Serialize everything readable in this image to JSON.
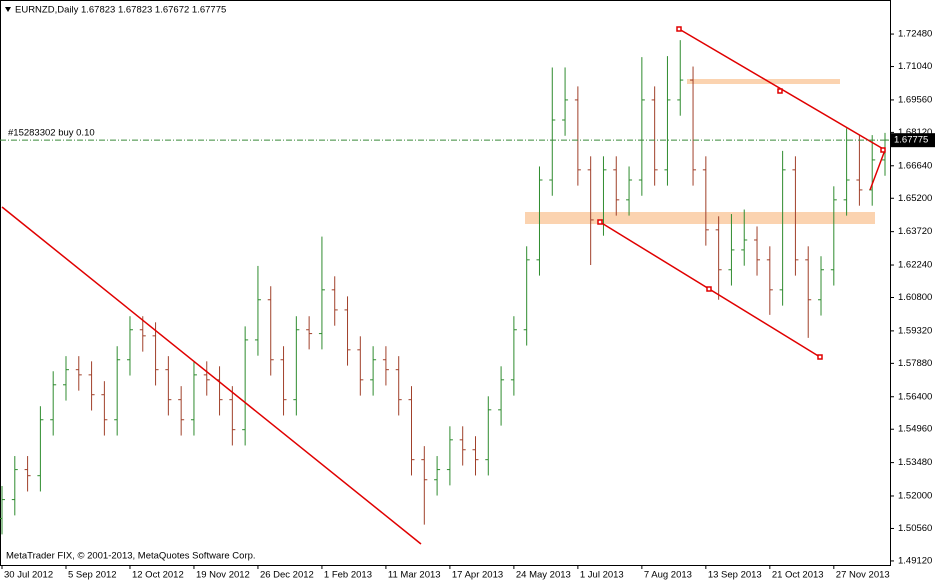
{
  "chart_data": {
    "type": "ohlc",
    "title": "EURNZD,Daily  1.67823 1.67823 1.67672 1.67775",
    "footer": "MetaTrader FIX, © 2001-2013, MetaQuotes Software Corp.",
    "order_label": "#15283302 buy 0.10",
    "current_price": {
      "value": 1.67775,
      "label": "1.67775"
    },
    "up_color": "#2e8b2e",
    "down_color": "#a0402a",
    "categories": [
      "30 Jul 2012",
      null,
      null,
      null,
      null,
      "5 Sep 2012",
      null,
      null,
      null,
      null,
      "12 Oct 2012",
      null,
      null,
      null,
      null,
      "19 Nov 2012",
      null,
      null,
      null,
      null,
      "26 Dec 2012",
      null,
      null,
      null,
      null,
      "1 Feb 2013",
      null,
      null,
      null,
      null,
      "11 Mar 2013",
      null,
      null,
      null,
      null,
      "17 Apr 2013",
      null,
      null,
      null,
      null,
      "24 May 2013",
      null,
      null,
      null,
      null,
      "1 Jul 2013",
      null,
      null,
      null,
      null,
      "7 Aug 2013",
      null,
      null,
      null,
      null,
      "13 Sep 2013",
      null,
      null,
      null,
      null,
      "21 Oct 2013",
      null,
      null,
      null,
      null,
      "27 Nov 2013",
      null,
      null,
      null,
      null
    ],
    "open": [
      1.51,
      1.5184,
      1.5317,
      1.529,
      1.5538,
      1.5693,
      1.576,
      1.5737,
      1.5649,
      1.5538,
      1.5804,
      1.5937,
      1.591,
      1.576,
      1.5627,
      1.5538,
      1.5737,
      1.5715,
      1.5627,
      1.5494,
      1.5892,
      1.607,
      1.5804,
      1.5627,
      1.5937,
      1.592,
      1.6114,
      1.6025,
      1.5848,
      1.5715,
      1.5804,
      1.576,
      1.5627,
      1.5361,
      1.5272,
      1.5317,
      1.5449,
      1.5405,
      1.5361,
      1.5582,
      1.5715,
      1.5937,
      1.6247,
      1.6601,
      1.6867,
      1.6956,
      1.6646,
      1.6424,
      1.6646,
      1.6513,
      1.6601,
      1.6956,
      1.6646,
      1.6956,
      1.7044,
      1.6646,
      1.638,
      1.6203,
      1.6291,
      1.6335,
      1.6247,
      1.6114,
      1.6646,
      1.6247,
      1.607,
      1.6203,
      1.6513,
      1.6601,
      1.6557,
      1.669
    ],
    "high": [
      1.5244,
      1.5377,
      1.5377,
      1.5598,
      1.5753,
      1.582,
      1.582,
      1.5797,
      1.5709,
      1.5864,
      1.5997,
      1.5997,
      1.597,
      1.582,
      1.5687,
      1.5797,
      1.5797,
      1.5775,
      1.5687,
      1.5952,
      1.622,
      1.613,
      1.5864,
      1.5997,
      1.5997,
      1.635,
      1.6174,
      1.6085,
      1.5908,
      1.5864,
      1.5864,
      1.582,
      1.5687,
      1.5421,
      1.5377,
      1.5509,
      1.5509,
      1.5465,
      1.5642,
      1.5775,
      1.5997,
      1.6307,
      1.6661,
      1.71,
      1.71,
      1.7016,
      1.6706,
      1.6706,
      1.6706,
      1.6661,
      1.7146,
      1.7016,
      1.715,
      1.7221,
      1.7104,
      1.6706,
      1.644,
      1.645,
      1.647,
      1.6395,
      1.6307,
      1.673,
      1.6706,
      1.6307,
      1.6263,
      1.6573,
      1.683,
      1.68,
      1.68,
      1.681
    ],
    "low": [
      1.503,
      1.5114,
      1.522,
      1.522,
      1.5468,
      1.5623,
      1.5667,
      1.5579,
      1.5468,
      1.5468,
      1.5734,
      1.584,
      1.569,
      1.5557,
      1.5468,
      1.5468,
      1.5645,
      1.5557,
      1.5424,
      1.5424,
      1.5822,
      1.5734,
      1.5557,
      1.5557,
      1.585,
      1.585,
      1.5955,
      1.5778,
      1.5645,
      1.5645,
      1.569,
      1.5557,
      1.5291,
      1.5073,
      1.5202,
      1.5247,
      1.5335,
      1.5291,
      1.5291,
      1.5512,
      1.5645,
      1.5867,
      1.6177,
      1.6531,
      1.6797,
      1.6576,
      1.6224,
      1.6354,
      1.6443,
      1.6443,
      1.6531,
      1.6576,
      1.6576,
      1.6886,
      1.6576,
      1.631,
      1.607,
      1.6133,
      1.6221,
      1.6177,
      1.6003,
      1.6044,
      1.6177,
      1.5901,
      1.6,
      1.6133,
      1.6443,
      1.6487,
      1.6487,
      1.662
    ],
    "close": [
      1.5184,
      1.5317,
      1.529,
      1.5538,
      1.5693,
      1.576,
      1.5737,
      1.5649,
      1.5538,
      1.5804,
      1.5937,
      1.591,
      1.576,
      1.5627,
      1.5538,
      1.5737,
      1.5715,
      1.5627,
      1.5494,
      1.5892,
      1.607,
      1.5804,
      1.5627,
      1.5937,
      1.592,
      1.6114,
      1.6025,
      1.5848,
      1.5715,
      1.5804,
      1.576,
      1.5627,
      1.5361,
      1.5272,
      1.5317,
      1.5449,
      1.5405,
      1.5361,
      1.5582,
      1.5715,
      1.5937,
      1.6247,
      1.6601,
      1.6867,
      1.6956,
      1.6646,
      1.6424,
      1.6646,
      1.6513,
      1.6601,
      1.6956,
      1.6646,
      1.6956,
      1.7044,
      1.6646,
      1.638,
      1.6203,
      1.6291,
      1.6335,
      1.6247,
      1.6114,
      1.6646,
      1.6247,
      1.607,
      1.6203,
      1.6513,
      1.6601,
      1.6557,
      1.669,
      1.6778
    ],
    "ylim": [
      1.4894,
      1.7399
    ],
    "yticks": [
      {
        "value": 1.7248,
        "label": "1.72480"
      },
      {
        "value": 1.7104,
        "label": "1.71040"
      },
      {
        "value": 1.6956,
        "label": "1.69560"
      },
      {
        "value": 1.6812,
        "label": "1.68120"
      },
      {
        "value": 1.6664,
        "label": "1.66640"
      },
      {
        "value": 1.652,
        "label": "1.65200"
      },
      {
        "value": 1.6372,
        "label": "1.63720"
      },
      {
        "value": 1.6224,
        "label": "1.62240"
      },
      {
        "value": 1.608,
        "label": "1.60800"
      },
      {
        "value": 1.5932,
        "label": "1.59320"
      },
      {
        "value": 1.5788,
        "label": "1.57880"
      },
      {
        "value": 1.564,
        "label": "1.56400"
      },
      {
        "value": 1.5496,
        "label": "1.54960"
      },
      {
        "value": 1.5348,
        "label": "1.53480"
      },
      {
        "value": 1.52,
        "label": "1.52000"
      },
      {
        "value": 1.5056,
        "label": "1.50560"
      },
      {
        "value": 1.4912,
        "label": "1.49120"
      }
    ]
  }
}
